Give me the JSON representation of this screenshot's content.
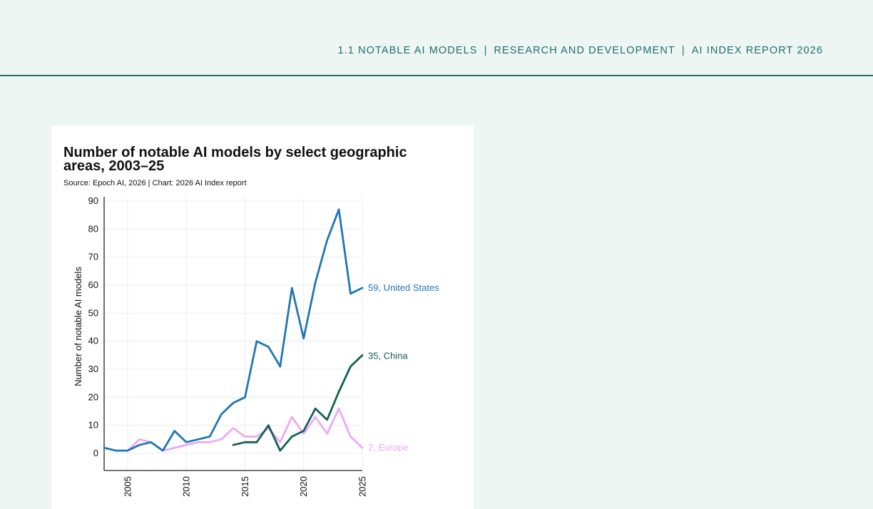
{
  "header": {
    "breadcrumb": [
      "1.1 NOTABLE AI MODELS",
      "RESEARCH AND DEVELOPMENT",
      "AI INDEX REPORT 2026"
    ],
    "separator": "|"
  },
  "colors": {
    "background": "#eef6f3",
    "accent": "#1d6f6b",
    "united_states": "#2176b5",
    "china": "#155f57",
    "europe": "#ebaaf8"
  },
  "chart_data": {
    "type": "line",
    "title": "Number of notable AI models by select geographic areas, 2003–25",
    "source": "Source: Epoch AI, 2026 | Chart: 2026 AI Index report",
    "xlabel": "",
    "ylabel": "Number of notable AI models",
    "xlim": [
      2003,
      2025
    ],
    "ylim": [
      0,
      90
    ],
    "x_ticks": [
      2005,
      2010,
      2015,
      2020,
      2025
    ],
    "y_ticks": [
      0,
      10,
      20,
      30,
      40,
      50,
      60,
      70,
      80,
      90
    ],
    "grid": true,
    "series": [
      {
        "name": "United States",
        "end_label": "59, United States",
        "color": "#2176b5",
        "x": [
          2003,
          2004,
          2005,
          2006,
          2007,
          2008,
          2009,
          2010,
          2011,
          2012,
          2013,
          2014,
          2015,
          2016,
          2017,
          2018,
          2019,
          2020,
          2021,
          2022,
          2023,
          2024,
          2025
        ],
        "values": [
          2,
          1,
          1,
          3,
          4,
          1,
          8,
          4,
          5,
          6,
          14,
          18,
          20,
          40,
          38,
          31,
          59,
          41,
          61,
          76,
          87,
          57,
          59
        ]
      },
      {
        "name": "China",
        "end_label": "35, China",
        "color": "#155f57",
        "x": [
          2014,
          2015,
          2016,
          2017,
          2018,
          2019,
          2020,
          2021,
          2022,
          2023,
          2024,
          2025
        ],
        "values": [
          3,
          4,
          4,
          10,
          1,
          6,
          8,
          16,
          12,
          22,
          31,
          35
        ]
      },
      {
        "name": "Europe",
        "end_label": "2, Europe",
        "color": "#ebaaf8",
        "x": [
          2005,
          2006,
          2007,
          2008,
          2009,
          2010,
          2011,
          2012,
          2013,
          2014,
          2015,
          2016,
          2017,
          2018,
          2019,
          2020,
          2021,
          2022,
          2023,
          2024,
          2025
        ],
        "values": [
          1,
          5,
          4,
          1,
          2,
          3,
          4,
          4,
          5,
          9,
          6,
          6,
          9,
          4,
          13,
          7,
          13,
          7,
          16,
          6,
          2
        ]
      }
    ]
  }
}
